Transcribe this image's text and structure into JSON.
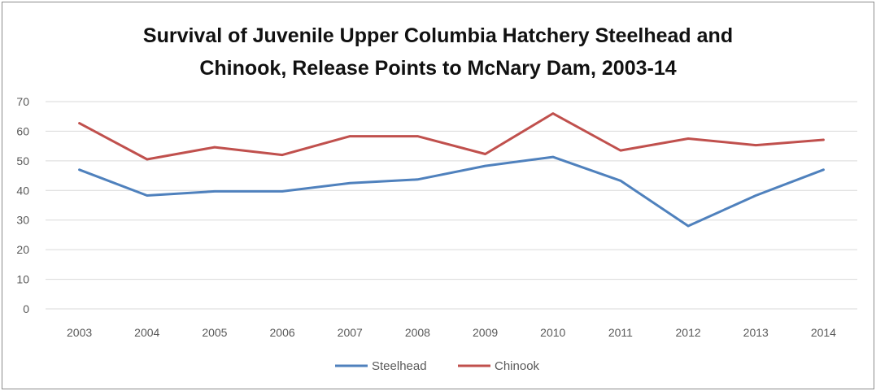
{
  "chart_data": {
    "type": "line",
    "title_line1": "Survival of Juvenile Upper Columbia Hatchery Steelhead and",
    "title_line2": "Chinook,  Release Points to McNary Dam, 2003-14",
    "categories": [
      "2003",
      "2004",
      "2005",
      "2006",
      "2007",
      "2008",
      "2009",
      "2010",
      "2011",
      "2012",
      "2013",
      "2014"
    ],
    "ylim": [
      0,
      70
    ],
    "yticks": [
      0,
      10,
      20,
      30,
      40,
      50,
      60,
      70
    ],
    "grid": true,
    "legend_position": "bottom",
    "series": [
      {
        "name": "Steelhead",
        "color": "#4f81bd",
        "values": [
          47,
          38.3,
          39.7,
          39.7,
          42.5,
          43.7,
          48.3,
          51.3,
          43.3,
          28.0,
          38.3,
          47.0
        ]
      },
      {
        "name": "Chinook",
        "color": "#c0504d",
        "values": [
          62.7,
          50.5,
          54.6,
          52.0,
          58.3,
          58.3,
          52.3,
          66.0,
          53.5,
          57.5,
          55.3,
          57.1
        ]
      }
    ]
  }
}
